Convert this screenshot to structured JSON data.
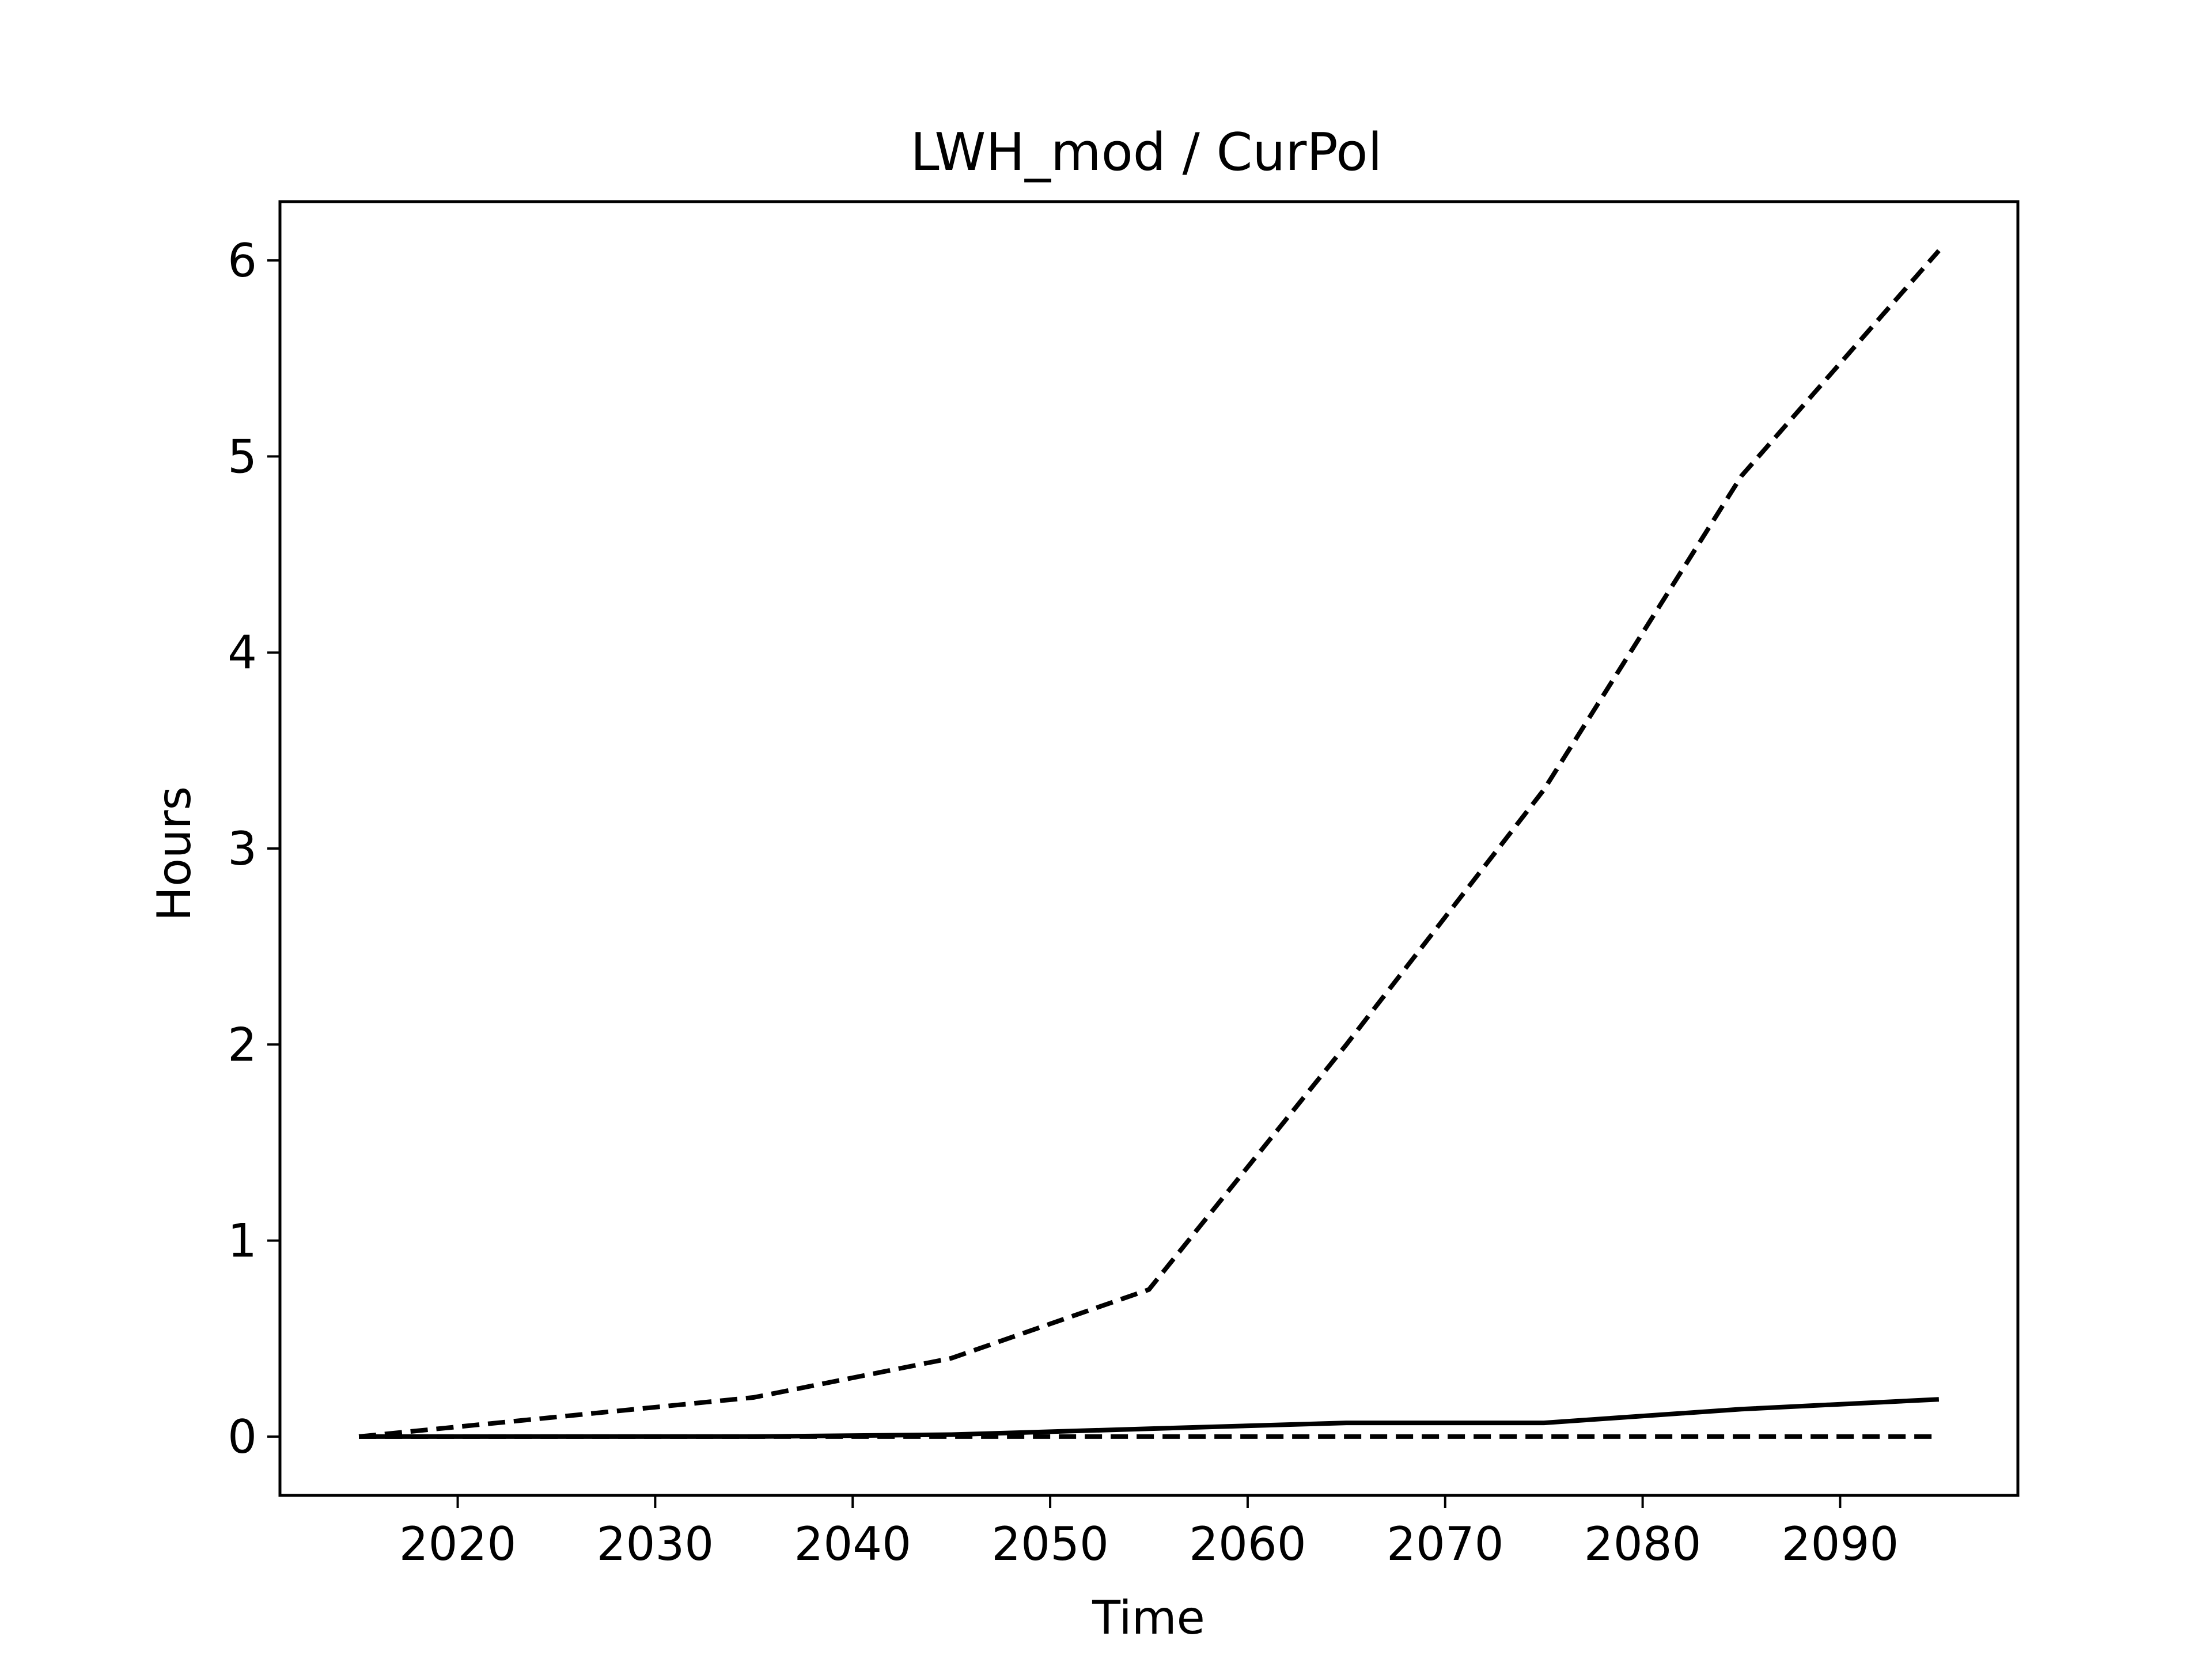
{
  "chart_data": {
    "type": "line",
    "title": "LWH_mod / CurPol",
    "xlabel": "Time",
    "ylabel": "Hours",
    "xlim": [
      2011,
      2099
    ],
    "ylim": [
      -0.3,
      6.3
    ],
    "xticks": [
      2020,
      2030,
      2040,
      2050,
      2060,
      2070,
      2080,
      2090
    ],
    "yticks": [
      0,
      1,
      2,
      3,
      4,
      5,
      6
    ],
    "grid": false,
    "legend": "none",
    "x": [
      2015,
      2025,
      2035,
      2045,
      2055,
      2065,
      2075,
      2085,
      2095
    ],
    "series": [
      {
        "values": [
          0.0,
          0.1,
          0.2,
          0.4,
          0.75,
          2.0,
          3.3,
          4.9,
          6.05
        ],
        "style": "dashed",
        "color": "#000000"
      },
      {
        "values": [
          0.0,
          0.0,
          0.0,
          0.01,
          0.04,
          0.07,
          0.07,
          0.14,
          0.19
        ],
        "style": "solid",
        "color": "#000000"
      },
      {
        "values": [
          0.0,
          0.0,
          0.0,
          0.0,
          0.0,
          0.0,
          0.0,
          0.0,
          0.0
        ],
        "style": "dashed",
        "color": "#000000"
      }
    ]
  }
}
